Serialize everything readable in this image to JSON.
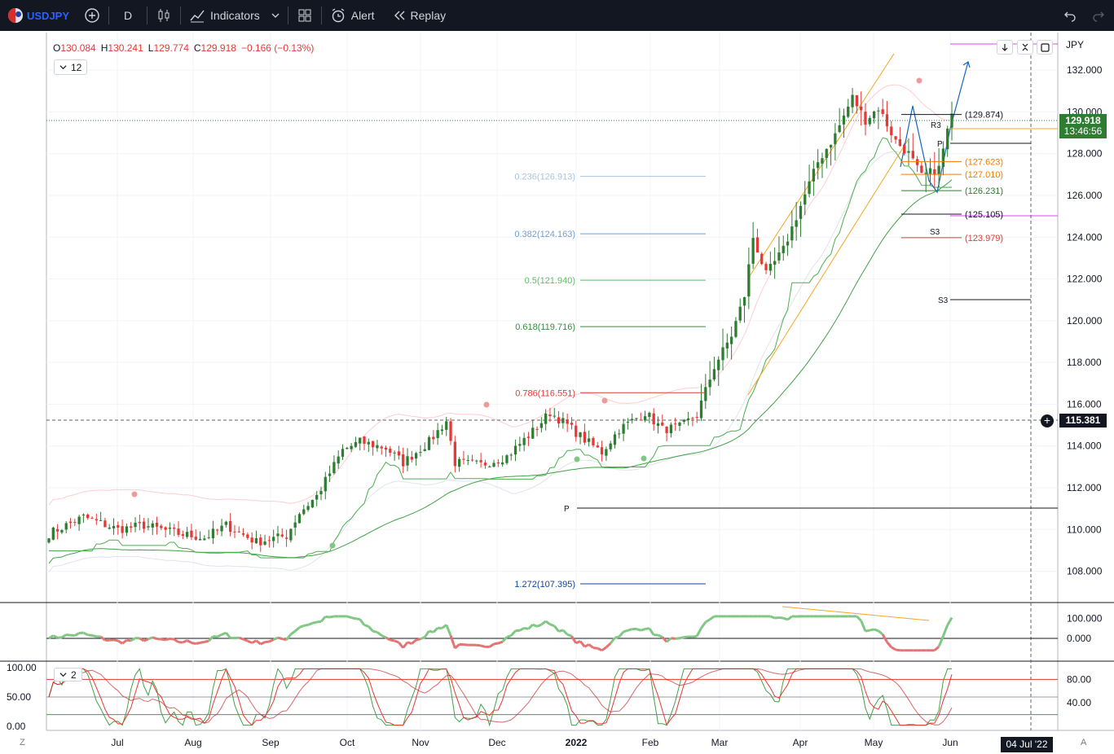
{
  "toolbar": {
    "symbol": "USDJPY",
    "interval": "D",
    "indicators_label": "Indicators",
    "alert_label": "Alert",
    "replay_label": "Replay"
  },
  "ohlc": {
    "open_key": "O",
    "open": "130.084",
    "high_key": "H",
    "high": "130.241",
    "low_key": "L",
    "low": "129.774",
    "close_key": "C",
    "close": "129.918",
    "change": "−0.166 (−0.13%)"
  },
  "indicator_legend_top": "12",
  "indicator_legend_bottom": "2",
  "price_axis_currency": "JPY",
  "last_price": {
    "value": "129.918",
    "countdown": "13:46:56"
  },
  "crosshair_price": "115.381",
  "crosshair_date": "04 Jul '22",
  "axis_letters": {
    "left": "Z",
    "right": "A"
  },
  "colors": {
    "up": "#2e7d32",
    "down": "#e53935",
    "accent": "#2962ff",
    "fib_orange": "#f5a623"
  },
  "chart_data": {
    "type": "candlestick",
    "x_ticks": [
      "Jul",
      "Aug",
      "Sep",
      "Oct",
      "Nov",
      "Dec",
      "2022",
      "Feb",
      "Mar",
      "Apr",
      "May",
      "Jun"
    ],
    "y_ticks": [
      "108.000",
      "110.000",
      "112.000",
      "114.000",
      "116.000",
      "118.000",
      "120.000",
      "122.000",
      "124.000",
      "126.000",
      "128.000",
      "130.000",
      "132.000"
    ],
    "ylim": [
      106.5,
      133.8
    ],
    "fib_levels": [
      {
        "label": "0.236(126.913)",
        "value": 126.913,
        "color": "#a8c4e0"
      },
      {
        "label": "0.382(124.163)",
        "value": 124.163,
        "color": "#6f9fd8"
      },
      {
        "label": "0.5(121.940)",
        "value": 121.94,
        "color": "#66bb6a"
      },
      {
        "label": "0.618(119.716)",
        "value": 119.716,
        "color": "#388e3c"
      },
      {
        "label": "0.786(116.551)",
        "value": 116.551,
        "color": "#e53935"
      },
      {
        "label": "1.272(107.395)",
        "value": 107.395,
        "color": "#0d47a1"
      }
    ],
    "pivot_levels": [
      {
        "label": "(129.874)",
        "value": 129.874,
        "color": "#131722"
      },
      {
        "label": "(127.623)",
        "value": 127.623,
        "color": "#f57c00"
      },
      {
        "label": "(127.010)",
        "value": 127.01,
        "color": "#f57c00"
      },
      {
        "label": "(126.231)",
        "value": 126.231,
        "color": "#2e7d32"
      },
      {
        "label": "(125.105)",
        "value": 125.105,
        "color": "#131722"
      },
      {
        "label": "(123.979)",
        "value": 123.979,
        "color": "#e53935"
      }
    ],
    "pivot_tags": [
      "R3",
      "P",
      "S3",
      "S3",
      "P"
    ],
    "osc1_ticks": [
      "100.000",
      "0.000"
    ],
    "osc2_left_ticks": [
      "100.00",
      "50.00",
      "0.00"
    ],
    "osc2_right_ticks": [
      "80.00",
      "40.00"
    ],
    "anchors": [
      {
        "x": 0,
        "y": 109.8
      },
      {
        "x": 8,
        "y": 110.6
      },
      {
        "x": 16,
        "y": 110.0
      },
      {
        "x": 22,
        "y": 110.2
      },
      {
        "x": 30,
        "y": 109.8
      },
      {
        "x": 36,
        "y": 109.6
      },
      {
        "x": 41,
        "y": 110.2
      },
      {
        "x": 48,
        "y": 109.4
      },
      {
        "x": 55,
        "y": 109.7
      },
      {
        "x": 58,
        "y": 110.8
      },
      {
        "x": 62,
        "y": 111.6
      },
      {
        "x": 68,
        "y": 113.8
      },
      {
        "x": 72,
        "y": 114.2
      },
      {
        "x": 78,
        "y": 113.9
      },
      {
        "x": 82,
        "y": 113.2
      },
      {
        "x": 88,
        "y": 114.2
      },
      {
        "x": 92,
        "y": 115.2
      },
      {
        "x": 94,
        "y": 113.2
      },
      {
        "x": 100,
        "y": 113.1
      },
      {
        "x": 106,
        "y": 113.5
      },
      {
        "x": 112,
        "y": 114.7
      },
      {
        "x": 116,
        "y": 115.6
      },
      {
        "x": 120,
        "y": 115.0
      },
      {
        "x": 124,
        "y": 114.3
      },
      {
        "x": 128,
        "y": 113.7
      },
      {
        "x": 132,
        "y": 114.8
      },
      {
        "x": 138,
        "y": 115.6
      },
      {
        "x": 142,
        "y": 114.8
      },
      {
        "x": 146,
        "y": 114.9
      },
      {
        "x": 150,
        "y": 115.5
      },
      {
        "x": 154,
        "y": 117.8
      },
      {
        "x": 158,
        "y": 119.3
      },
      {
        "x": 161,
        "y": 121.2
      },
      {
        "x": 163,
        "y": 124.0
      },
      {
        "x": 166,
        "y": 122.2
      },
      {
        "x": 170,
        "y": 123.4
      },
      {
        "x": 174,
        "y": 125.5
      },
      {
        "x": 178,
        "y": 127.6
      },
      {
        "x": 182,
        "y": 128.9
      },
      {
        "x": 186,
        "y": 130.7
      },
      {
        "x": 189,
        "y": 129.6
      },
      {
        "x": 192,
        "y": 130.2
      },
      {
        "x": 196,
        "y": 128.6
      },
      {
        "x": 199,
        "y": 128.0
      },
      {
        "x": 202,
        "y": 126.9
      },
      {
        "x": 206,
        "y": 127.3
      },
      {
        "x": 209,
        "y": 130.0
      }
    ]
  }
}
